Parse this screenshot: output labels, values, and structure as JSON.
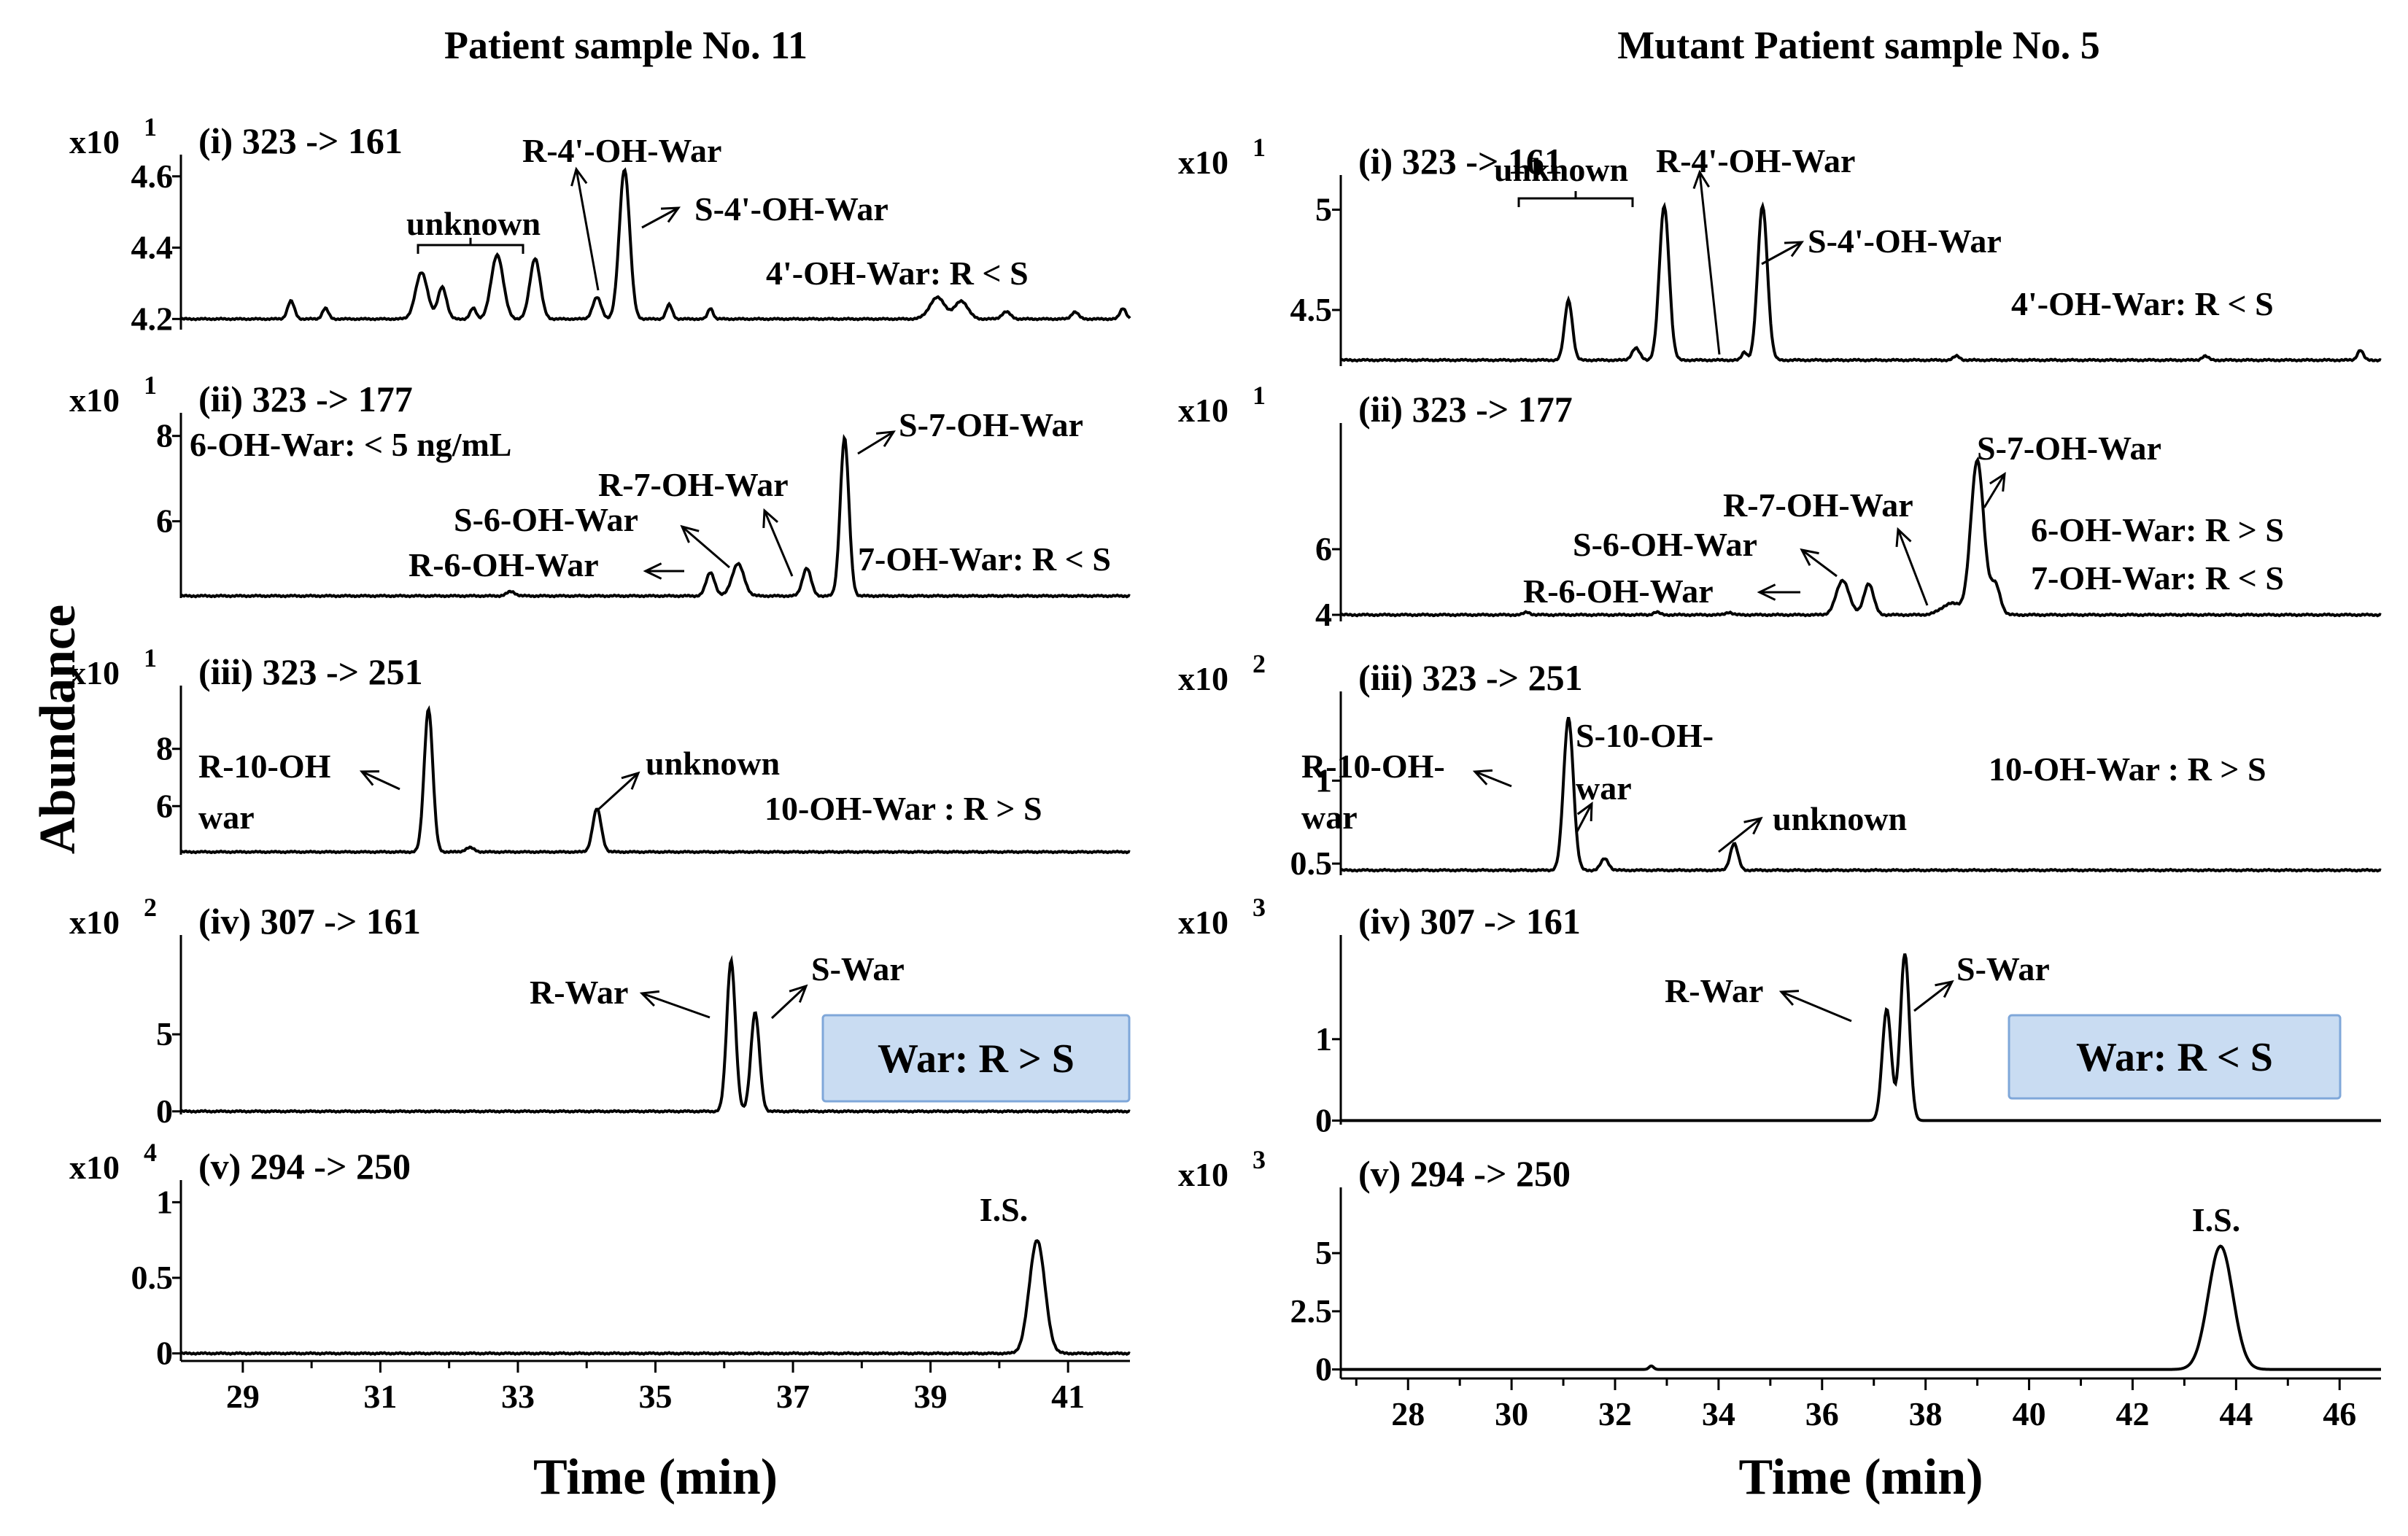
{
  "figure": {
    "y_axis_label": "Abundance",
    "left_title": "Patient sample No. 11",
    "right_title": "Mutant Patient sample No. 5"
  },
  "chart_data": [
    {
      "type": "line",
      "title": "Patient sample No. 11",
      "xlabel": "Time (min)",
      "xlim": [
        28.1,
        41.9
      ],
      "xticks": [
        29,
        31,
        33,
        35,
        37,
        39,
        41
      ],
      "panels": [
        {
          "label": "(i) 323 -> 161",
          "scale": "x10",
          "exponent": "1",
          "ylim": [
            4.17,
            4.62
          ],
          "yticks": [
            4.2,
            4.4,
            4.6
          ],
          "baseline": 4.2,
          "peaks": [
            [
              29.7,
              0.05,
              0.08
            ],
            [
              30.2,
              0.03,
              0.07
            ],
            [
              31.6,
              0.13,
              0.14
            ],
            [
              31.9,
              0.09,
              0.1
            ],
            [
              32.35,
              0.03,
              0.07
            ],
            [
              32.7,
              0.18,
              0.14
            ],
            [
              33.25,
              0.17,
              0.12
            ],
            [
              34.15,
              0.06,
              0.1
            ],
            [
              34.55,
              0.42,
              0.12
            ],
            [
              35.2,
              0.04,
              0.07
            ],
            [
              35.8,
              0.03,
              0.06
            ],
            [
              39.1,
              0.06,
              0.18
            ],
            [
              39.45,
              0.05,
              0.15
            ],
            [
              40.1,
              0.02,
              0.1
            ],
            [
              41.1,
              0.02,
              0.08
            ],
            [
              41.8,
              0.03,
              0.07
            ]
          ],
          "annotations": [
            "R-4'-OH-War",
            "S-4'-OH-War",
            "unknown",
            "4'-OH-War:  R < S"
          ]
        },
        {
          "label": "(ii) 323 -> 177",
          "scale": "x10",
          "exponent": "1",
          "ylim": [
            4.2,
            8.2
          ],
          "yticks": [
            6,
            8
          ],
          "baseline": 4.25,
          "peaks": [
            [
              35.8,
              0.55,
              0.1
            ],
            [
              36.2,
              0.75,
              0.14
            ],
            [
              37.2,
              0.65,
              0.1
            ],
            [
              37.75,
              3.7,
              0.1
            ],
            [
              32.9,
              0.1,
              0.1
            ]
          ],
          "annotations": [
            "6-OH-War: < 5 ng/mL",
            "S-7-OH-War",
            "R-7-OH-War",
            "S-6-OH-War",
            "R-6-OH-War",
            "7-OH-War:  R < S"
          ]
        },
        {
          "label": "(iii) 323 -> 251",
          "scale": "x10",
          "exponent": "1",
          "ylim": [
            4.3,
            9.7
          ],
          "yticks": [
            6,
            8
          ],
          "baseline": 4.4,
          "peaks": [
            [
              31.7,
              5.0,
              0.1
            ],
            [
              34.15,
              1.5,
              0.1
            ],
            [
              32.3,
              0.15,
              0.1
            ]
          ],
          "annotations": [
            "R-10-OH war",
            "unknown",
            "10-OH-War : R > S"
          ]
        },
        {
          "label": "(iv) 307 -> 161",
          "scale": "x10",
          "exponent": "2",
          "ylim": [
            -0.2,
            10.5
          ],
          "yticks": [
            0,
            5
          ],
          "baseline": 0,
          "peaks": [
            [
              36.1,
              9.8,
              0.1
            ],
            [
              36.45,
              6.4,
              0.1
            ]
          ],
          "annotations": [
            "R-War",
            "S-War",
            "War:  R > S"
          ]
        },
        {
          "label": "(v) 294 -> 250",
          "scale": "x10",
          "exponent": "4",
          "ylim": [
            -0.05,
            1.05
          ],
          "yticks": [
            0,
            0.5,
            1
          ],
          "baseline": 0,
          "peaks": [
            [
              40.55,
              0.75,
              0.18
            ]
          ],
          "annotations": [
            "I.S."
          ]
        }
      ]
    },
    {
      "type": "line",
      "title": "Mutant Patient sample No. 5",
      "xlabel": "Time (min)",
      "xlim": [
        26.7,
        46.8
      ],
      "xticks": [
        28,
        30,
        32,
        34,
        36,
        38,
        40,
        42,
        44,
        46
      ],
      "panels": [
        {
          "label": "(i) 323 -> 161",
          "scale": "x10",
          "exponent": "1",
          "ylim": [
            4.22,
            5.1
          ],
          "yticks": [
            4.5,
            5
          ],
          "baseline": 4.25,
          "peaks": [
            [
              31.1,
              0.3,
              0.12
            ],
            [
              32.4,
              0.06,
              0.12
            ],
            [
              32.95,
              0.77,
              0.15
            ],
            [
              34.5,
              0.04,
              0.08
            ],
            [
              34.85,
              0.77,
              0.15
            ],
            [
              38.6,
              0.02,
              0.1
            ],
            [
              43.4,
              0.02,
              0.1
            ],
            [
              46.4,
              0.05,
              0.09
            ]
          ],
          "annotations": [
            "unknown",
            "R-4'-OH-War",
            "S-4'-OH-War",
            "4'-OH-War:  R < S"
          ]
        },
        {
          "label": "(ii) 323 -> 177",
          "scale": "x10",
          "exponent": "1",
          "ylim": [
            3.8,
            9.4
          ],
          "yticks": [
            4,
            6
          ],
          "baseline": 4.0,
          "peaks": [
            [
              36.4,
              1.05,
              0.2
            ],
            [
              36.9,
              0.95,
              0.15
            ],
            [
              38.5,
              0.35,
              0.3
            ],
            [
              39.0,
              4.7,
              0.2
            ],
            [
              39.35,
              0.9,
              0.15
            ],
            [
              30.3,
              0.08,
              0.1
            ],
            [
              32.8,
              0.08,
              0.1
            ],
            [
              34.2,
              0.08,
              0.1
            ]
          ],
          "annotations": [
            "S-7-OH-War",
            "R-7-OH-War",
            "S-6-OH-War",
            "R-6-OH-War",
            "6-OH-War:    R > S",
            "7-OH-War:    R < S"
          ]
        },
        {
          "label": "(iii) 323 -> 251",
          "scale": "x10",
          "exponent": "2",
          "ylim": [
            0.43,
            1.45
          ],
          "yticks": [
            0.5,
            1
          ],
          "baseline": 0.46,
          "peaks": [
            [
              31.1,
              0.92,
              0.15
            ],
            [
              31.8,
              0.07,
              0.12
            ],
            [
              34.3,
              0.16,
              0.12
            ]
          ],
          "annotations": [
            "R-10-OH- war",
            "S-10-OH- war",
            "unknown",
            "10-OH-War : R > S"
          ]
        },
        {
          "label": "(iv) 307 -> 161",
          "scale": "x10",
          "exponent": "3",
          "ylim": [
            -0.05,
            2.1
          ],
          "yticks": [
            0,
            1
          ],
          "baseline": 0,
          "peaks": [
            [
              37.25,
              1.37,
              0.14
            ],
            [
              37.6,
              2.05,
              0.14
            ]
          ],
          "annotations": [
            "R-War",
            "S-War",
            "War:  R < S"
          ]
        },
        {
          "label": "(v) 294 -> 250",
          "scale": "x10",
          "exponent": "3",
          "ylim": [
            -0.2,
            7.2
          ],
          "yticks": [
            0,
            2.5,
            5
          ],
          "baseline": 0,
          "peaks": [
            [
              43.7,
              5.3,
              0.38
            ],
            [
              32.7,
              0.15,
              0.07
            ]
          ],
          "annotations": [
            "I.S."
          ]
        }
      ]
    }
  ]
}
